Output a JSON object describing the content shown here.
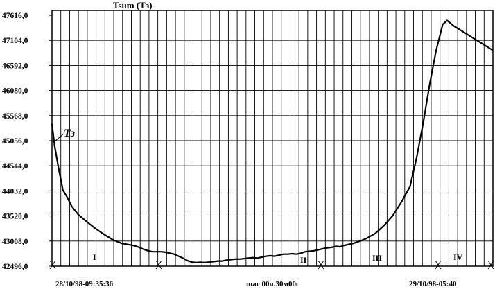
{
  "chart_data": {
    "type": "line",
    "title": "Tsum (Tз)",
    "xlabel": "",
    "ylabel": "",
    "ylim": [
      42496.0,
      47616.0
    ],
    "grid": true,
    "y_ticks": [
      "47616,0",
      "47104,0",
      "46592,0",
      "46080,0",
      "45568,0",
      "45056,0",
      "44544,0",
      "44032,0",
      "43520,0",
      "43008,0",
      "42496,0"
    ],
    "y_tick_values": [
      47616,
      47104,
      46592,
      46080,
      45568,
      45056,
      44544,
      44032,
      43520,
      43008,
      42496
    ],
    "x_range": [
      0,
      101
    ],
    "x_step": "шаг 00ч.30м00с",
    "x_start_label": "28/10/98-09:35:36",
    "x_end_label": "29/10/98-05:40",
    "series": [
      {
        "x": [
          0,
          0.6,
          1.5,
          2.5,
          3.5,
          4.5,
          6,
          8,
          10,
          12,
          14,
          16,
          18,
          19,
          20,
          21,
          22,
          23,
          24,
          25,
          26,
          27,
          28,
          29,
          30,
          31,
          32,
          33,
          34,
          35,
          36,
          37,
          38,
          39,
          40,
          41,
          42,
          43,
          44,
          45,
          46,
          47,
          48,
          49,
          50,
          51,
          52,
          53,
          54,
          55,
          56,
          57,
          58,
          59,
          60,
          61,
          62,
          63,
          64,
          65,
          66,
          67,
          68,
          69,
          70,
          72,
          74,
          76,
          78,
          80,
          82,
          83.5,
          85,
          86.5,
          88,
          89.5,
          90.5,
          92,
          101
        ],
        "y": [
          45400,
          44950,
          44500,
          44050,
          43900,
          43720,
          43550,
          43400,
          43260,
          43140,
          43030,
          42960,
          42930,
          42910,
          42880,
          42840,
          42810,
          42790,
          42790,
          42790,
          42780,
          42760,
          42740,
          42700,
          42660,
          42610,
          42580,
          42570,
          42575,
          42570,
          42580,
          42590,
          42600,
          42600,
          42620,
          42630,
          42640,
          42640,
          42650,
          42660,
          42670,
          42660,
          42680,
          42700,
          42710,
          42700,
          42720,
          42740,
          42740,
          42750,
          42740,
          42760,
          42790,
          42800,
          42810,
          42830,
          42850,
          42870,
          42880,
          42900,
          42890,
          42920,
          42940,
          42960,
          42990,
          43060,
          43160,
          43320,
          43520,
          43800,
          44120,
          44700,
          45400,
          46200,
          46900,
          47430,
          47510,
          47400,
          46900
        ]
      }
    ],
    "annotations": {
      "curve_label": "Тз",
      "region_labels": [
        "I",
        "II",
        "III",
        "IV"
      ]
    }
  }
}
